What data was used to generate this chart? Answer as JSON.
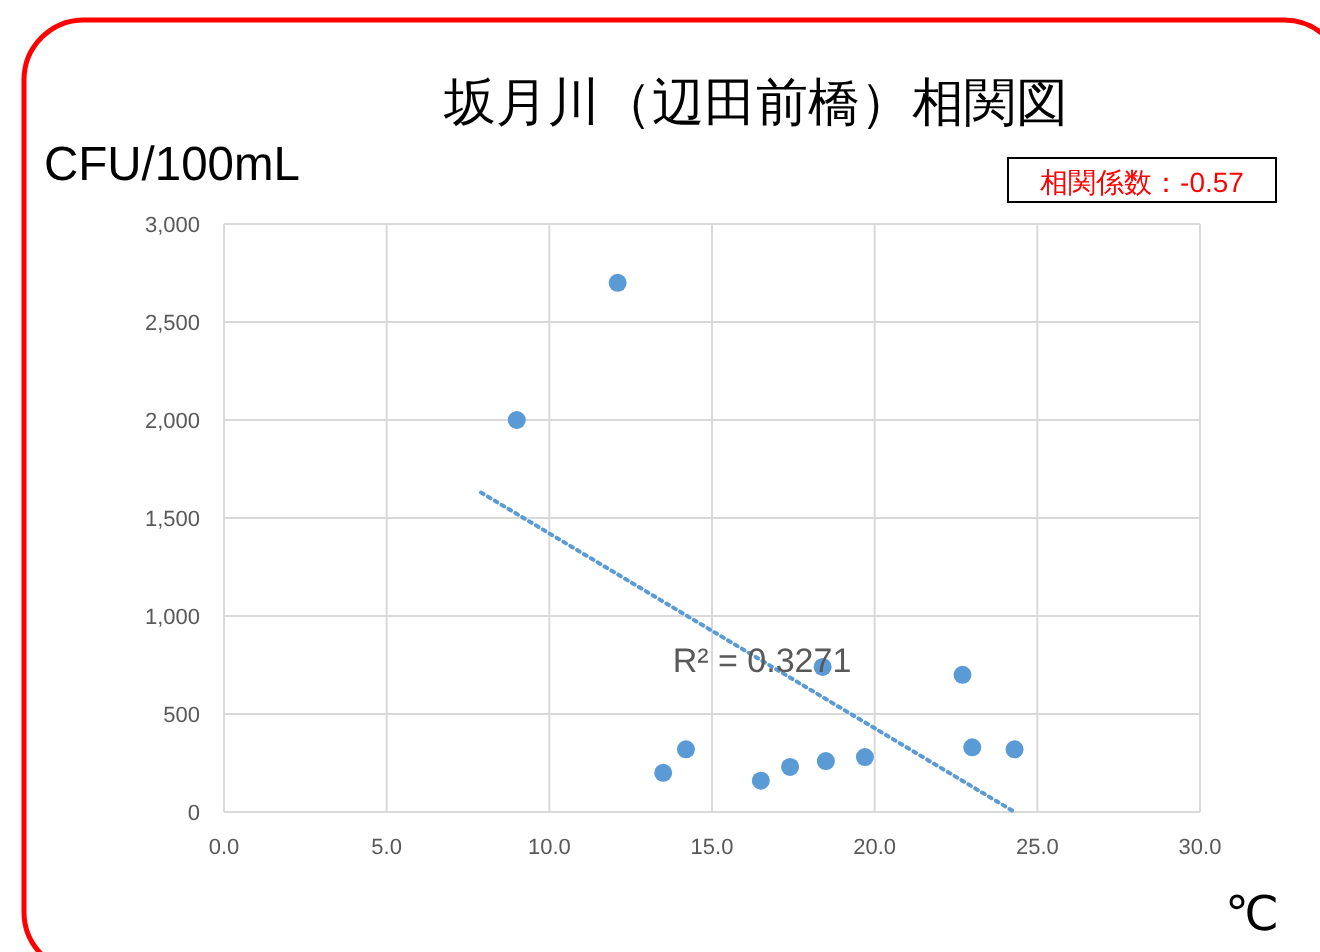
{
  "chart_data": {
    "type": "scatter",
    "title": "坂月川（辺田前橋）相関図",
    "ylabel": "CFU/100mL",
    "xlabel": "℃",
    "xlim": [
      0,
      30
    ],
    "xticks": [
      {
        "value": 0,
        "label": "0.0"
      },
      {
        "value": 5,
        "label": "5.0"
      },
      {
        "value": 10,
        "label": "10.0"
      },
      {
        "value": 15,
        "label": "15.0"
      },
      {
        "value": 20,
        "label": "20.0"
      },
      {
        "value": 25,
        "label": "25.0"
      },
      {
        "value": 30,
        "label": "30.0"
      }
    ],
    "ylim": [
      0,
      3000
    ],
    "yticks": [
      0,
      500,
      {
        "value": 1000,
        "label": "1,000"
      },
      {
        "value": 1500,
        "label": "1,500"
      },
      {
        "value": 2000,
        "label": "2,000"
      },
      {
        "value": 2500,
        "label": "2,500"
      },
      {
        "value": 3000,
        "label": "3,000"
      }
    ],
    "grid": true,
    "marker": "circle",
    "series": [
      {
        "color": "#5b9bd5",
        "x": [
          9.0,
          12.1,
          13.5,
          14.2,
          16.5,
          17.4,
          18.5,
          18.4,
          19.7,
          22.7,
          23.0,
          24.3
        ],
        "values": [
          2000,
          2700,
          200,
          320,
          160,
          230,
          260,
          740,
          280,
          700,
          330,
          320
        ]
      },
      {
        "type": "line",
        "color": "#5b9bd5",
        "marker": "none",
        "line_style": "dotted",
        "x": [
          7.9,
          24.3
        ],
        "values": [
          1630,
          0
        ]
      }
    ],
    "annotations": [
      "R² = 0.3271",
      "相関係数：-0.57"
    ]
  }
}
